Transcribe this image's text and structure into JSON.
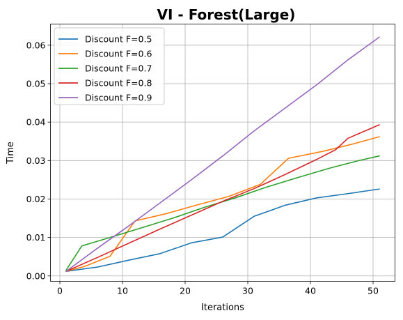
{
  "chart_data": {
    "type": "line",
    "title": "VI - Forest(Large)",
    "xlabel": "Iterations",
    "ylabel": "Time",
    "xlim": [
      -1.5,
      53.5
    ],
    "ylim": [
      -0.0014,
      0.0655
    ],
    "xticks": [
      0,
      10,
      20,
      30,
      40,
      50
    ],
    "xtick_labels": [
      "0",
      "10",
      "20",
      "30",
      "40",
      "50"
    ],
    "yticks": [
      0.0,
      0.01,
      0.02,
      0.03,
      0.04,
      0.05,
      0.06
    ],
    "ytick_labels": [
      "0.00",
      "0.01",
      "0.02",
      "0.03",
      "0.04",
      "0.05",
      "0.06"
    ],
    "grid": true,
    "legend_position": "upper-left",
    "series": [
      {
        "name": "Discount F=0.5",
        "color": "#1f77b4",
        "x": [
          1,
          6,
          11,
          16,
          21,
          26,
          31,
          36,
          41,
          46,
          51
        ],
        "y": [
          0.0012,
          0.0023,
          0.0041,
          0.0058,
          0.0086,
          0.0101,
          0.0155,
          0.0184,
          0.0203,
          0.0214,
          0.0226
        ]
      },
      {
        "name": "Discount F=0.6",
        "color": "#ff7f0e",
        "x": [
          1,
          4,
          8,
          12,
          17,
          22,
          27,
          32,
          36.5,
          42,
          47,
          51
        ],
        "y": [
          0.0012,
          0.0025,
          0.0051,
          0.0143,
          0.0162,
          0.0185,
          0.0207,
          0.0238,
          0.0306,
          0.0324,
          0.0344,
          0.0362
        ]
      },
      {
        "name": "Discount F=0.7",
        "color": "#2ca02c",
        "x": [
          1,
          3.5,
          8,
          13,
          18,
          23,
          28,
          33,
          38,
          43,
          48,
          51
        ],
        "y": [
          0.0015,
          0.0078,
          0.01,
          0.0125,
          0.015,
          0.0178,
          0.0203,
          0.0231,
          0.0256,
          0.028,
          0.0301,
          0.0312
        ]
      },
      {
        "name": "Discount F=0.8",
        "color": "#d62728",
        "x": [
          1,
          6,
          11,
          16,
          21,
          26,
          31,
          36,
          41,
          44,
          46,
          51
        ],
        "y": [
          0.0012,
          0.0048,
          0.0085,
          0.0122,
          0.0158,
          0.0194,
          0.0227,
          0.0264,
          0.0303,
          0.0328,
          0.0358,
          0.0393
        ]
      },
      {
        "name": "Discount F=0.9",
        "color": "#9467bd",
        "x": [
          1,
          6,
          11,
          16,
          21,
          26,
          31,
          36,
          41,
          46,
          51
        ],
        "y": [
          0.0012,
          0.0072,
          0.013,
          0.019,
          0.025,
          0.0312,
          0.0377,
          0.0437,
          0.0497,
          0.0562,
          0.0621
        ]
      }
    ]
  }
}
